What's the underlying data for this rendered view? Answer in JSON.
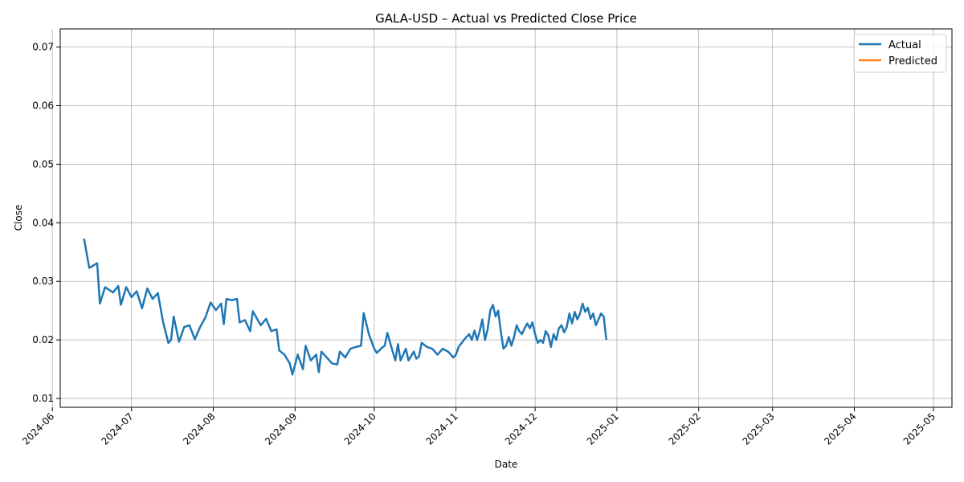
{
  "chart_data": {
    "type": "line",
    "title": "GALA-USD – Actual vs Predicted Close Price",
    "xlabel": "Date",
    "ylabel": "Close",
    "xlim": [
      "2024-06-04",
      "2025-05-08"
    ],
    "ylim": [
      0.0085,
      0.0731
    ],
    "grid": true,
    "legend_position": "top-right",
    "x_ticks": [
      "2024-06",
      "2024-07",
      "2024-08",
      "2024-09",
      "2024-10",
      "2024-11",
      "2024-12",
      "2025-01",
      "2025-02",
      "2025-03",
      "2025-04",
      "2025-05"
    ],
    "y_ticks": [
      "0.01",
      "0.02",
      "0.03",
      "0.04",
      "0.05",
      "0.06",
      "0.07"
    ],
    "y_tick_values": [
      0.01,
      0.02,
      0.03,
      0.04,
      0.05,
      0.06,
      0.07
    ],
    "series": [
      {
        "name": "Actual",
        "color": "#1f77b4",
        "points": [
          [
            "2024-06-13",
            0.0373
          ],
          [
            "2024-06-15",
            0.0323
          ],
          [
            "2024-06-18",
            0.0331
          ],
          [
            "2024-06-19",
            0.0262
          ],
          [
            "2024-06-21",
            0.029
          ],
          [
            "2024-06-24",
            0.0281
          ],
          [
            "2024-06-26",
            0.0292
          ],
          [
            "2024-06-27",
            0.026
          ],
          [
            "2024-06-29",
            0.029
          ],
          [
            "2024-07-01",
            0.0273
          ],
          [
            "2024-07-03",
            0.0283
          ],
          [
            "2024-07-05",
            0.0254
          ],
          [
            "2024-07-07",
            0.0288
          ],
          [
            "2024-07-09",
            0.027
          ],
          [
            "2024-07-11",
            0.028
          ],
          [
            "2024-07-13",
            0.023
          ],
          [
            "2024-07-15",
            0.0195
          ],
          [
            "2024-07-16",
            0.02
          ],
          [
            "2024-07-17",
            0.024
          ],
          [
            "2024-07-19",
            0.0197
          ],
          [
            "2024-07-21",
            0.0222
          ],
          [
            "2024-07-23",
            0.0225
          ],
          [
            "2024-07-25",
            0.0201
          ],
          [
            "2024-07-27",
            0.0222
          ],
          [
            "2024-07-29",
            0.0238
          ],
          [
            "2024-07-31",
            0.0264
          ],
          [
            "2024-08-02",
            0.0251
          ],
          [
            "2024-08-04",
            0.0262
          ],
          [
            "2024-08-05",
            0.0227
          ],
          [
            "2024-08-06",
            0.027
          ],
          [
            "2024-08-08",
            0.0268
          ],
          [
            "2024-08-10",
            0.027
          ],
          [
            "2024-08-11",
            0.023
          ],
          [
            "2024-08-13",
            0.0234
          ],
          [
            "2024-08-15",
            0.0215
          ],
          [
            "2024-08-16",
            0.0249
          ],
          [
            "2024-08-19",
            0.0225
          ],
          [
            "2024-08-21",
            0.0236
          ],
          [
            "2024-08-23",
            0.0215
          ],
          [
            "2024-08-25",
            0.0218
          ],
          [
            "2024-08-26",
            0.0182
          ],
          [
            "2024-08-28",
            0.0175
          ],
          [
            "2024-08-30",
            0.016
          ],
          [
            "2024-08-31",
            0.0141
          ],
          [
            "2024-09-02",
            0.0175
          ],
          [
            "2024-09-04",
            0.015
          ],
          [
            "2024-09-05",
            0.019
          ],
          [
            "2024-09-07",
            0.0165
          ],
          [
            "2024-09-09",
            0.0175
          ],
          [
            "2024-09-10",
            0.0145
          ],
          [
            "2024-09-11",
            0.018
          ],
          [
            "2024-09-13",
            0.017
          ],
          [
            "2024-09-15",
            0.016
          ],
          [
            "2024-09-17",
            0.0158
          ],
          [
            "2024-09-18",
            0.018
          ],
          [
            "2024-09-20",
            0.017
          ],
          [
            "2024-09-22",
            0.0185
          ],
          [
            "2024-09-24",
            0.0188
          ],
          [
            "2024-09-26",
            0.019
          ],
          [
            "2024-09-27",
            0.0246
          ],
          [
            "2024-09-29",
            0.021
          ],
          [
            "2024-10-01",
            0.0185
          ],
          [
            "2024-10-02",
            0.0178
          ],
          [
            "2024-10-04",
            0.0187
          ],
          [
            "2024-10-05",
            0.019
          ],
          [
            "2024-10-06",
            0.0212
          ],
          [
            "2024-10-08",
            0.018
          ],
          [
            "2024-10-09",
            0.0165
          ],
          [
            "2024-10-10",
            0.0193
          ],
          [
            "2024-10-11",
            0.0165
          ],
          [
            "2024-10-12",
            0.0175
          ],
          [
            "2024-10-13",
            0.0185
          ],
          [
            "2024-10-14",
            0.0165
          ],
          [
            "2024-10-16",
            0.018
          ],
          [
            "2024-10-17",
            0.0168
          ],
          [
            "2024-10-18",
            0.0172
          ],
          [
            "2024-10-19",
            0.0195
          ],
          [
            "2024-10-21",
            0.0188
          ],
          [
            "2024-10-23",
            0.0185
          ],
          [
            "2024-10-25",
            0.0175
          ],
          [
            "2024-10-27",
            0.0185
          ],
          [
            "2024-10-29",
            0.018
          ],
          [
            "2024-10-31",
            0.017
          ],
          [
            "2024-11-01",
            0.0175
          ],
          [
            "2024-11-02",
            0.0188
          ],
          [
            "2024-11-04",
            0.02
          ],
          [
            "2024-11-06",
            0.021
          ],
          [
            "2024-11-07",
            0.02
          ],
          [
            "2024-11-08",
            0.0216
          ],
          [
            "2024-11-09",
            0.02
          ],
          [
            "2024-11-10",
            0.0215
          ],
          [
            "2024-11-11",
            0.0235
          ],
          [
            "2024-11-12",
            0.02
          ],
          [
            "2024-11-13",
            0.0218
          ],
          [
            "2024-11-14",
            0.025
          ],
          [
            "2024-11-15",
            0.026
          ],
          [
            "2024-11-16",
            0.024
          ],
          [
            "2024-11-17",
            0.025
          ],
          [
            "2024-11-18",
            0.0215
          ],
          [
            "2024-11-19",
            0.0185
          ],
          [
            "2024-11-20",
            0.019
          ],
          [
            "2024-11-21",
            0.0205
          ],
          [
            "2024-11-22",
            0.019
          ],
          [
            "2024-11-23",
            0.0205
          ],
          [
            "2024-11-24",
            0.0225
          ],
          [
            "2024-11-25",
            0.0215
          ],
          [
            "2024-11-26",
            0.021
          ],
          [
            "2024-11-27",
            0.022
          ],
          [
            "2024-11-28",
            0.0228
          ],
          [
            "2024-11-29",
            0.022
          ],
          [
            "2024-11-30",
            0.023
          ],
          [
            "2024-12-01",
            0.021
          ],
          [
            "2024-12-02",
            0.0195
          ],
          [
            "2024-12-03",
            0.02
          ],
          [
            "2024-12-04",
            0.0195
          ],
          [
            "2024-12-05",
            0.0215
          ],
          [
            "2024-12-06",
            0.0208
          ],
          [
            "2024-12-07",
            0.0188
          ],
          [
            "2024-12-08",
            0.021
          ],
          [
            "2024-12-09",
            0.02
          ],
          [
            "2024-12-10",
            0.022
          ],
          [
            "2024-12-11",
            0.0225
          ],
          [
            "2024-12-12",
            0.0213
          ],
          [
            "2024-12-13",
            0.0222
          ],
          [
            "2024-12-14",
            0.0245
          ],
          [
            "2024-12-15",
            0.0228
          ],
          [
            "2024-12-16",
            0.0248
          ],
          [
            "2024-12-17",
            0.0235
          ],
          [
            "2024-12-18",
            0.0245
          ],
          [
            "2024-12-19",
            0.0262
          ],
          [
            "2024-12-20",
            0.0248
          ],
          [
            "2024-12-21",
            0.0255
          ],
          [
            "2024-12-22",
            0.0236
          ],
          [
            "2024-12-23",
            0.0245
          ],
          [
            "2024-12-24",
            0.0225
          ],
          [
            "2024-12-25",
            0.0235
          ],
          [
            "2024-12-26",
            0.0245
          ],
          [
            "2024-12-27",
            0.024
          ],
          [
            "2024-12-28",
            0.02
          ]
        ]
      },
      {
        "name": "Predicted",
        "color": "#ff7f0e",
        "points": []
      }
    ]
  }
}
